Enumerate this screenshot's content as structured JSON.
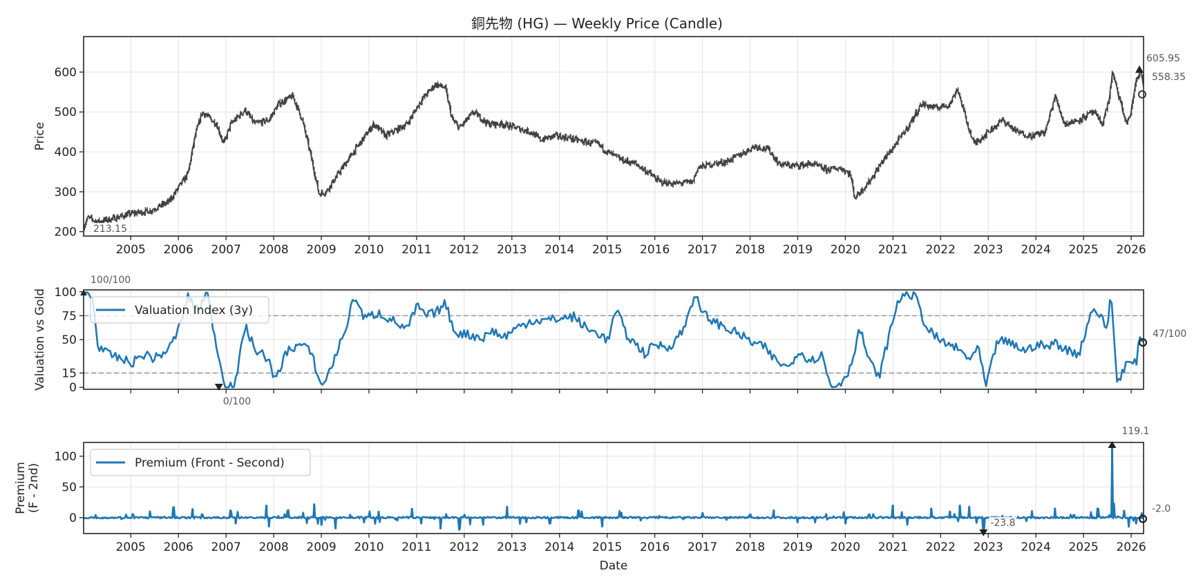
{
  "title": "銅先物 (HG) — Weekly Price (Candle)",
  "chart_data": [
    {
      "type": "line",
      "name": "price-panel",
      "style": "candle",
      "ylabel": "Price",
      "xlabel": "",
      "xlim": [
        2004.01,
        2026.26
      ],
      "ylim": [
        189,
        689
      ],
      "yticks": [
        200,
        300,
        400,
        500,
        600
      ],
      "xticks": [
        2005,
        2006,
        2007,
        2008,
        2009,
        2010,
        2011,
        2012,
        2013,
        2014,
        2015,
        2016,
        2017,
        2018,
        2019,
        2020,
        2021,
        2022,
        2023,
        2024,
        2025,
        2026
      ],
      "grid": true,
      "color": "#404040",
      "annotations": {
        "min_label": "213.15",
        "max_label": "605.95",
        "last_label": "558.35"
      },
      "series": [
        {
          "name": "Price",
          "x": [
            2004.01,
            2004.1,
            2004.3,
            2004.6,
            2005.0,
            2005.4,
            2005.8,
            2006.0,
            2006.2,
            2006.35,
            2006.5,
            2006.8,
            2006.95,
            2007.1,
            2007.4,
            2007.6,
            2007.9,
            2008.1,
            2008.4,
            2008.6,
            2008.8,
            2008.95,
            2009.1,
            2009.5,
            2009.8,
            2010.1,
            2010.35,
            2010.5,
            2010.8,
            2011.1,
            2011.4,
            2011.6,
            2011.75,
            2011.9,
            2012.2,
            2012.5,
            2012.8,
            2013.1,
            2013.4,
            2013.6,
            2013.9,
            2014.2,
            2014.5,
            2014.8,
            2015.0,
            2015.3,
            2015.6,
            2015.9,
            2016.1,
            2016.4,
            2016.8,
            2016.9,
            2017.2,
            2017.5,
            2017.9,
            2018.1,
            2018.4,
            2018.6,
            2018.9,
            2019.3,
            2019.6,
            2019.9,
            2020.1,
            2020.2,
            2020.5,
            2020.8,
            2021.0,
            2021.3,
            2021.6,
            2021.9,
            2022.2,
            2022.35,
            2022.55,
            2022.7,
            2023.0,
            2023.3,
            2023.6,
            2023.9,
            2024.2,
            2024.4,
            2024.6,
            2024.9,
            2025.2,
            2025.4,
            2025.55,
            2025.6,
            2025.9,
            2026.0,
            2026.1,
            2026.2,
            2026.26
          ],
          "y": [
            213,
            235,
            225,
            232,
            245,
            252,
            275,
            310,
            345,
            440,
            500,
            470,
            420,
            470,
            505,
            470,
            480,
            520,
            540,
            480,
            380,
            295,
            300,
            370,
            420,
            470,
            440,
            450,
            470,
            530,
            570,
            560,
            480,
            460,
            500,
            470,
            470,
            460,
            450,
            430,
            440,
            435,
            425,
            420,
            400,
            380,
            370,
            345,
            325,
            320,
            325,
            360,
            370,
            375,
            400,
            415,
            405,
            370,
            365,
            370,
            355,
            360,
            345,
            285,
            325,
            380,
            410,
            460,
            520,
            510,
            520,
            560,
            475,
            420,
            450,
            480,
            450,
            440,
            450,
            540,
            470,
            480,
            500,
            470,
            540,
            600,
            470,
            500,
            580,
            605,
            558
          ]
        }
      ]
    },
    {
      "type": "line",
      "name": "valuation-panel",
      "ylabel": "Valuation vs Gold",
      "xlim": [
        2004.01,
        2026.26
      ],
      "ylim": [
        -2,
        102
      ],
      "yticks": [
        0,
        15,
        50,
        75,
        100
      ],
      "reference_lines": [
        15,
        75
      ],
      "grid": true,
      "color": "#1f77b4",
      "legend": {
        "label": "Valuation Index (3y)",
        "placement": "top-left"
      },
      "annotations": {
        "max_label": "100/100",
        "min_label": "0/100",
        "last_label": "47/100"
      },
      "series": [
        {
          "name": "Valuation Index (3y)",
          "x": [
            2004.01,
            2004.2,
            2004.3,
            2004.5,
            2004.8,
            2005.0,
            2005.3,
            2005.5,
            2005.8,
            2006.0,
            2006.2,
            2006.4,
            2006.6,
            2006.85,
            2007.0,
            2007.2,
            2007.4,
            2007.6,
            2007.9,
            2008.0,
            2008.3,
            2008.6,
            2008.8,
            2009.0,
            2009.2,
            2009.5,
            2009.7,
            2009.9,
            2010.2,
            2010.5,
            2010.8,
            2011.0,
            2011.2,
            2011.4,
            2011.6,
            2011.8,
            2012.1,
            2012.4,
            2012.6,
            2012.8,
            2013.1,
            2013.4,
            2013.7,
            2014.0,
            2014.3,
            2014.6,
            2014.9,
            2015.0,
            2015.2,
            2015.4,
            2015.6,
            2015.8,
            2016.0,
            2016.3,
            2016.6,
            2016.85,
            2016.95,
            2017.2,
            2017.5,
            2017.8,
            2018.0,
            2018.3,
            2018.5,
            2018.8,
            2019.0,
            2019.3,
            2019.5,
            2019.7,
            2019.9,
            2020.1,
            2020.3,
            2020.5,
            2020.7,
            2020.9,
            2021.1,
            2021.3,
            2021.5,
            2021.7,
            2022.0,
            2022.3,
            2022.6,
            2022.8,
            2022.95,
            2023.2,
            2023.5,
            2023.8,
            2024.0,
            2024.3,
            2024.4,
            2024.6,
            2024.9,
            2025.2,
            2025.5,
            2025.58,
            2025.7,
            2025.9,
            2026.1,
            2026.2,
            2026.26
          ],
          "y": [
            100,
            95,
            45,
            35,
            30,
            25,
            35,
            30,
            40,
            60,
            95,
            80,
            100,
            30,
            0,
            5,
            65,
            40,
            30,
            5,
            40,
            45,
            35,
            0,
            20,
            60,
            96,
            72,
            78,
            70,
            60,
            85,
            75,
            78,
            88,
            58,
            55,
            52,
            60,
            52,
            62,
            70,
            70,
            72,
            74,
            60,
            55,
            48,
            82,
            55,
            45,
            35,
            45,
            42,
            60,
            100,
            80,
            70,
            62,
            55,
            48,
            42,
            30,
            20,
            38,
            28,
            35,
            0,
            5,
            20,
            62,
            28,
            10,
            50,
            90,
            100,
            92,
            62,
            48,
            42,
            30,
            40,
            0,
            50,
            45,
            38,
            45,
            42,
            48,
            40,
            35,
            85,
            62,
            100,
            5,
            25,
            25,
            55,
            47
          ]
        }
      ]
    },
    {
      "type": "line",
      "name": "premium-panel",
      "ylabel": "Premium\n(F - 2nd)",
      "xlabel": "Date",
      "xlim": [
        2004.01,
        2026.26
      ],
      "ylim": [
        -26,
        122.5
      ],
      "yticks": [
        0,
        50,
        100
      ],
      "xticks": [
        2005,
        2006,
        2007,
        2008,
        2009,
        2010,
        2011,
        2012,
        2013,
        2014,
        2015,
        2016,
        2017,
        2018,
        2019,
        2020,
        2021,
        2022,
        2023,
        2024,
        2025,
        2026
      ],
      "grid": true,
      "color": "#1f77b4",
      "legend": {
        "label": "Premium (Front - Second)",
        "placement": "top-left"
      },
      "annotations": {
        "max_label": "119.1",
        "min_label": "-23.8",
        "last_label": "-2.0"
      },
      "series": [
        {
          "name": "Premium (Front - Second)",
          "x": [
            2004.01,
            2004.8,
            2004.9,
            2005.4,
            2005.9,
            2006.3,
            2006.5,
            2007.1,
            2007.2,
            2007.85,
            2007.9,
            2008.1,
            2008.3,
            2008.85,
            2009.0,
            2009.3,
            2009.6,
            2009.9,
            2010.2,
            2010.6,
            2010.9,
            2011.1,
            2011.5,
            2011.9,
            2012.0,
            2012.4,
            2012.9,
            2013.3,
            2013.8,
            2014.4,
            2014.9,
            2015.3,
            2015.7,
            2016.1,
            2016.6,
            2017.0,
            2017.5,
            2018.0,
            2018.5,
            2019.0,
            2019.6,
            2020.0,
            2020.5,
            2021.0,
            2021.3,
            2021.8,
            2022.2,
            2022.4,
            2022.6,
            2022.75,
            2022.9,
            2023.3,
            2023.8,
            2024.4,
            2024.8,
            2025.3,
            2025.55,
            2025.6,
            2025.65,
            2025.85,
            2025.95,
            2026.1,
            2026.26
          ],
          "y": [
            0,
            -3,
            5,
            10,
            17,
            14,
            5,
            12,
            -10,
            20,
            -15,
            3,
            12,
            22,
            -12,
            -18,
            5,
            -8,
            10,
            -5,
            15,
            -10,
            -18,
            -20,
            5,
            -12,
            18,
            -8,
            -10,
            12,
            -15,
            8,
            -5,
            3,
            -3,
            8,
            -4,
            5,
            12,
            -8,
            6,
            -10,
            5,
            20,
            -12,
            15,
            10,
            20,
            18,
            -8,
            -23.8,
            3,
            -6,
            15,
            4,
            15,
            4,
            119.1,
            0,
            12,
            -15,
            -10,
            -2
          ]
        }
      ]
    }
  ]
}
